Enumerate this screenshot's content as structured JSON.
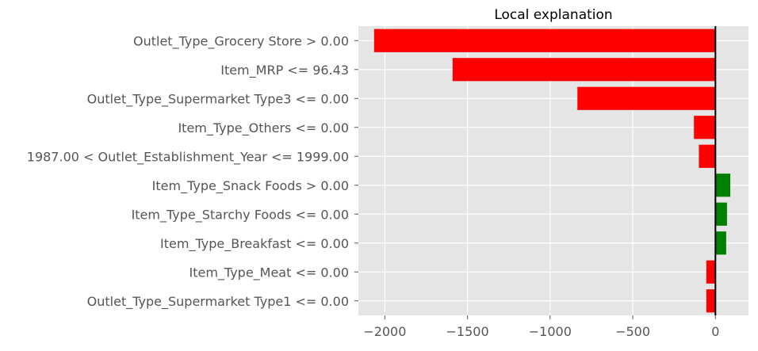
{
  "chart_data": {
    "type": "bar",
    "orientation": "horizontal",
    "title": "Local explanation",
    "xlabel": "",
    "ylabel": "",
    "xlim": [
      -2160,
      200
    ],
    "xticks": [
      -2000,
      -1500,
      -1000,
      -500,
      0
    ],
    "xtick_labels": [
      "−2000",
      "−1500",
      "−1000",
      "−500",
      "0"
    ],
    "grid": true,
    "colors": {
      "positive": "#008000",
      "negative": "#ff0000",
      "background": "#e5e5e5",
      "grid": "#ffffff"
    },
    "categories": [
      "Outlet_Type_Grocery Store > 0.00",
      "Item_MRP <= 96.43",
      "Outlet_Type_Supermarket Type3 <= 0.00",
      "Item_Type_Others <= 0.00",
      "1987.00 < Outlet_Establishment_Year <= 1999.00",
      "Item_Type_Snack Foods > 0.00",
      "Item_Type_Starchy Foods <= 0.00",
      "Item_Type_Breakfast <= 0.00",
      "Item_Type_Meat <= 0.00",
      "Outlet_Type_Supermarket Type1 <= 0.00"
    ],
    "values": [
      -2065,
      -1590,
      -835,
      -130,
      -100,
      90,
      70,
      65,
      -55,
      -55
    ]
  }
}
